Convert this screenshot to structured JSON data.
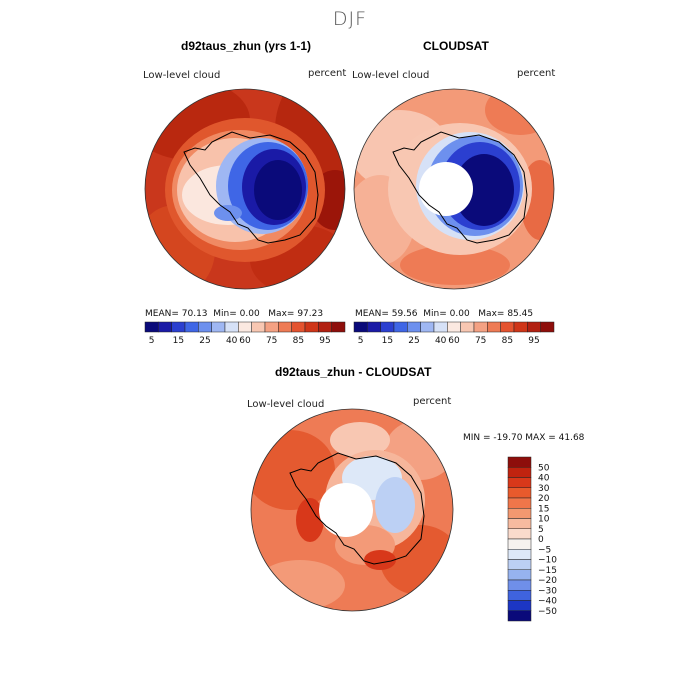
{
  "season": "DJF",
  "panels": [
    {
      "title": "d92taus_zhun (yrs 1-1)",
      "variable": "Low-level cloud",
      "units": "percent",
      "mean": "70.13",
      "min": "0.00",
      "max": "97.23"
    },
    {
      "title": "CLOUDSAT",
      "variable": "Low-level cloud",
      "units": "percent",
      "mean": "59.56",
      "min": "0.00",
      "max": "85.45"
    }
  ],
  "stats_labels": {
    "mean": "MEAN=",
    "min": "Min=",
    "max": "Max="
  },
  "colorbar_top": {
    "colors": [
      "#0a0a7a",
      "#1a1aa6",
      "#2b3fd0",
      "#3f66e6",
      "#6d90ee",
      "#9fb7f3",
      "#d6e1f7",
      "#fbe9e1",
      "#f8c7b2",
      "#f4a183",
      "#ee7b55",
      "#e4532f",
      "#cf3518",
      "#b22011",
      "#8e0e0b"
    ],
    "labels": [
      "5",
      "15",
      "25",
      "40",
      "60",
      "75",
      "85",
      "95"
    ]
  },
  "diff_panel": {
    "title": "d92taus_zhun - CLOUDSAT",
    "variable": "Low-level cloud",
    "units": "percent",
    "minmax_text": "MIN = -19.70 MAX =  41.68"
  },
  "colorbar_diff": {
    "colors": [
      "#8e0e0b",
      "#c0230f",
      "#d8381a",
      "#e85a2c",
      "#f0764a",
      "#f39870",
      "#f7bba0",
      "#fadbcc",
      "#f6f2ef",
      "#dde8f8",
      "#bcd0f4",
      "#96b3ef",
      "#6f8fe9",
      "#3f63de",
      "#1c36c4",
      "#0a0a7a"
    ],
    "labels": [
      "50",
      "40",
      "30",
      "20",
      "15",
      "10",
      "5",
      "0",
      "−5",
      "−10",
      "−15",
      "−20",
      "−30",
      "−40",
      "−50"
    ]
  }
}
